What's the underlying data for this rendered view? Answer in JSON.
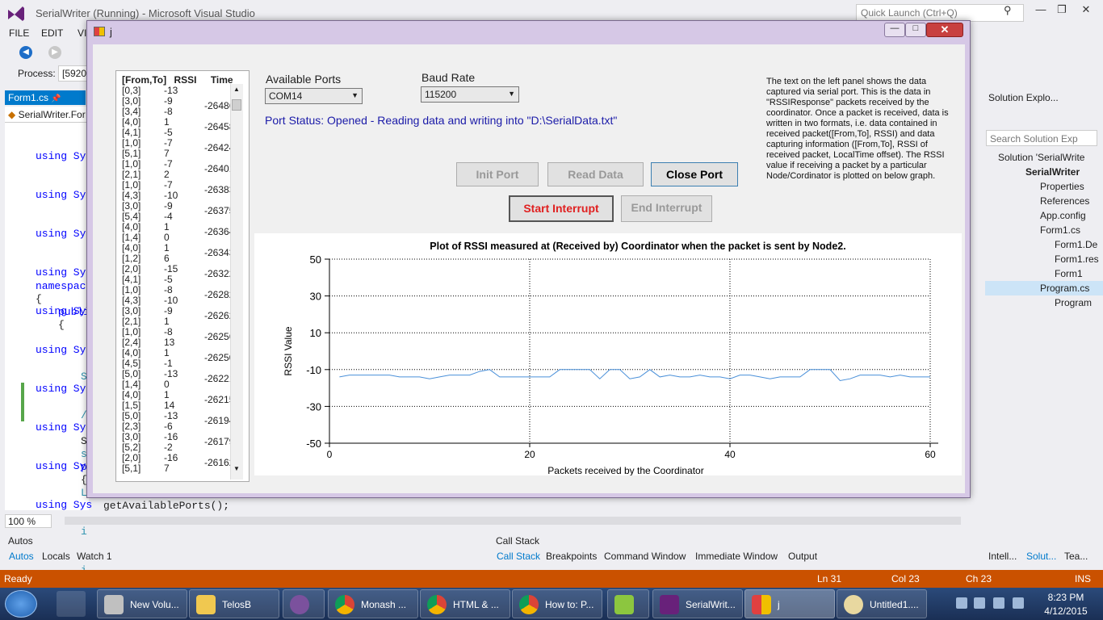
{
  "vs": {
    "title": "SerialWriter (Running) - Microsoft Visual Studio",
    "quick_launch_placeholder": "Quick Launch (Ctrl+Q)",
    "menu": [
      "FILE",
      "EDIT",
      "VI"
    ],
    "process_label": "Process:",
    "process_value": "[5920",
    "tab_label": "Form1.cs",
    "nav_label": "SerialWriter.For",
    "code_lines": [
      "using Sys",
      "using Sys",
      "using Sys",
      "using Sys",
      "using Sys",
      "using Sys",
      "using Sys",
      "using Sys",
      "using Sys",
      "using Sys"
    ],
    "namespace_kw": "namespace",
    "brace_open": "{",
    "public_kw": "publi",
    "brace_open_2": "{",
    "snippet_lines": [
      "S",
      "/",
      "s",
      "L",
      "i",
      "i"
    ],
    "snippet_s": "S",
    "snippet_p": "p",
    "brace_open_3": "{",
    "bottom_code": "getAvailablePorts();",
    "zoom": "100 %",
    "autos_title": "Autos",
    "callstack_title": "Call Stack",
    "left_tabs": [
      "Autos",
      "Locals",
      "Watch 1"
    ],
    "right_tabs": [
      "Call Stack",
      "Breakpoints",
      "Command Window",
      "Immediate Window",
      "Output"
    ],
    "far_tabs": [
      "Intell...",
      "Solut...",
      "Tea..."
    ],
    "status": {
      "ready": "Ready",
      "ln": "Ln 31",
      "col": "Col 23",
      "ch": "Ch 23",
      "ins": "INS"
    }
  },
  "solution": {
    "header": "Solution Explo...",
    "search_placeholder": "Search Solution Exp",
    "items": [
      {
        "label": "Solution 'SerialWrite"
      },
      {
        "label": "SerialWriter"
      },
      {
        "label": "Properties"
      },
      {
        "label": "References"
      },
      {
        "label": "App.config"
      },
      {
        "label": "Form1.cs"
      },
      {
        "label": "Form1.De"
      },
      {
        "label": "Form1.res"
      },
      {
        "label": "Form1"
      },
      {
        "label": "Program.cs"
      },
      {
        "label": "Program"
      }
    ]
  },
  "dialog": {
    "title": "j",
    "list_header": {
      "from_to": "[From,To]",
      "rssi": "RSSI",
      "time": "Time"
    },
    "rows": [
      {
        "ft": "[0,3]",
        "rssi": "-13",
        "time": ""
      },
      {
        "ft": "[3,0]",
        "rssi": "-9",
        "time": "-26486"
      },
      {
        "ft": "[3,4]",
        "rssi": "-8",
        "time": ""
      },
      {
        "ft": "[4,0]",
        "rssi": "1",
        "time": "-26458"
      },
      {
        "ft": "[4,1]",
        "rssi": "-5",
        "time": ""
      },
      {
        "ft": "[1,0]",
        "rssi": "-7",
        "time": "-26424"
      },
      {
        "ft": "[5,1]",
        "rssi": "7",
        "time": ""
      },
      {
        "ft": "[1,0]",
        "rssi": "-7",
        "time": "-26401"
      },
      {
        "ft": "[2,1]",
        "rssi": "2",
        "time": ""
      },
      {
        "ft": "[1,0]",
        "rssi": "-7",
        "time": "-26383"
      },
      {
        "ft": "[4,3]",
        "rssi": "-10",
        "time": ""
      },
      {
        "ft": "[3,0]",
        "rssi": "-9",
        "time": "-26375"
      },
      {
        "ft": "[5,4]",
        "rssi": "-4",
        "time": ""
      },
      {
        "ft": "[4,0]",
        "rssi": "1",
        "time": "-26364"
      },
      {
        "ft": "[1,4]",
        "rssi": "0",
        "time": ""
      },
      {
        "ft": "[4,0]",
        "rssi": "1",
        "time": "-26343"
      },
      {
        "ft": "[1,2]",
        "rssi": "6",
        "time": ""
      },
      {
        "ft": "[2,0]",
        "rssi": "-15",
        "time": "-26322"
      },
      {
        "ft": "[4,1]",
        "rssi": "-5",
        "time": ""
      },
      {
        "ft": "[1,0]",
        "rssi": "-8",
        "time": "-26282"
      },
      {
        "ft": "[4,3]",
        "rssi": "-10",
        "time": ""
      },
      {
        "ft": "[3,0]",
        "rssi": "-9",
        "time": "-26262"
      },
      {
        "ft": "[2,1]",
        "rssi": "1",
        "time": ""
      },
      {
        "ft": "[1,0]",
        "rssi": "-8",
        "time": "-26256"
      },
      {
        "ft": "[2,4]",
        "rssi": "13",
        "time": ""
      },
      {
        "ft": "[4,0]",
        "rssi": "1",
        "time": "-26250"
      },
      {
        "ft": "[4,5]",
        "rssi": "-1",
        "time": ""
      },
      {
        "ft": "[5,0]",
        "rssi": "-13",
        "time": "-26221"
      },
      {
        "ft": "[1,4]",
        "rssi": "0",
        "time": ""
      },
      {
        "ft": "[4,0]",
        "rssi": "1",
        "time": "-26215"
      },
      {
        "ft": "[1,5]",
        "rssi": "14",
        "time": ""
      },
      {
        "ft": "[5,0]",
        "rssi": "-13",
        "time": "-26194"
      },
      {
        "ft": "[2,3]",
        "rssi": "-6",
        "time": ""
      },
      {
        "ft": "[3,0]",
        "rssi": "-16",
        "time": "-26179"
      },
      {
        "ft": "[5,2]",
        "rssi": "-2",
        "time": ""
      },
      {
        "ft": "[2,0]",
        "rssi": "-16",
        "time": "-26162"
      },
      {
        "ft": "[5,1]",
        "rssi": "7",
        "time": ""
      }
    ],
    "available_ports_label": "Available Ports",
    "port_value": "COM14",
    "baud_label": "Baud Rate",
    "baud_value": "115200",
    "port_status": "Port Status: Opened - Reading data and writing into \"D:\\SerialData.txt\"",
    "description": "The text on the left panel shows the data captured via serial port. This is the data in \"RSSIResponse\" packets received by the coordinator. Once a packet is received, data is written in two formats, i.e. data contained in received packet([From,To], RSSI) and data capturing information ([From,To], RSSI  of received packet, LocalTime offset). The RSSI value if receiving a packet by a particular Node/Cordinator is plotted on below graph.",
    "buttons": {
      "init": "Init Port",
      "read": "Read Data",
      "close": "Close Port",
      "start": "Start Interrupt",
      "end": "End Interrupt"
    }
  },
  "taskbar": {
    "items": [
      "New Volu...",
      "TelosB",
      "",
      "Monash ...",
      "HTML & ...",
      "How to: P...",
      "",
      "SerialWrit...",
      "j",
      "Untitled1...."
    ],
    "time": "8:23 PM",
    "date": "4/12/2015"
  },
  "colors": {
    "accent": "#007acc",
    "status_bar": "#ca5100",
    "series": "#4a90d9",
    "status_text": "#1a1aa8",
    "start_interrupt": "#e02020"
  },
  "chart_data": {
    "type": "line",
    "title": "Plot of RSSI measured at (Received by) Coordinator when the packet is sent by Node2.",
    "xlabel": "Packets received by the Coordinator",
    "ylabel": "RSSI Value",
    "xlim": [
      0,
      60
    ],
    "ylim": [
      -50,
      50
    ],
    "xticks": [
      0,
      20,
      40,
      60
    ],
    "yticks": [
      50,
      30,
      10,
      -10,
      -30,
      -50
    ],
    "grid": true,
    "series": [
      {
        "x": [
          1,
          2,
          3,
          4,
          5,
          6,
          7,
          8,
          9,
          10,
          11,
          12,
          13,
          14,
          15,
          16,
          17,
          18,
          19,
          20,
          21,
          22,
          23,
          24,
          25,
          26,
          27,
          28,
          29,
          30,
          31,
          32,
          33,
          34,
          35,
          36,
          37,
          38,
          39,
          40,
          41,
          42,
          43,
          44,
          45,
          46,
          47,
          48,
          49,
          50,
          51,
          52,
          53,
          54,
          55,
          56,
          57,
          58,
          59,
          60
        ],
        "values": [
          -14,
          -13,
          -13,
          -13,
          -13,
          -13,
          -14,
          -14,
          -14,
          -15,
          -14,
          -13,
          -13,
          -13,
          -11,
          -10,
          -14,
          -14,
          -14,
          -14,
          -14,
          -14,
          -10,
          -10,
          -10,
          -10,
          -15,
          -10,
          -10,
          -15,
          -14,
          -10,
          -14,
          -13,
          -14,
          -14,
          -13,
          -14,
          -14,
          -15,
          -13,
          -13,
          -14,
          -15,
          -14,
          -14,
          -14,
          -10,
          -10,
          -10,
          -16,
          -15,
          -13,
          -13,
          -13,
          -14,
          -13,
          -14,
          -14,
          -14
        ]
      }
    ]
  }
}
